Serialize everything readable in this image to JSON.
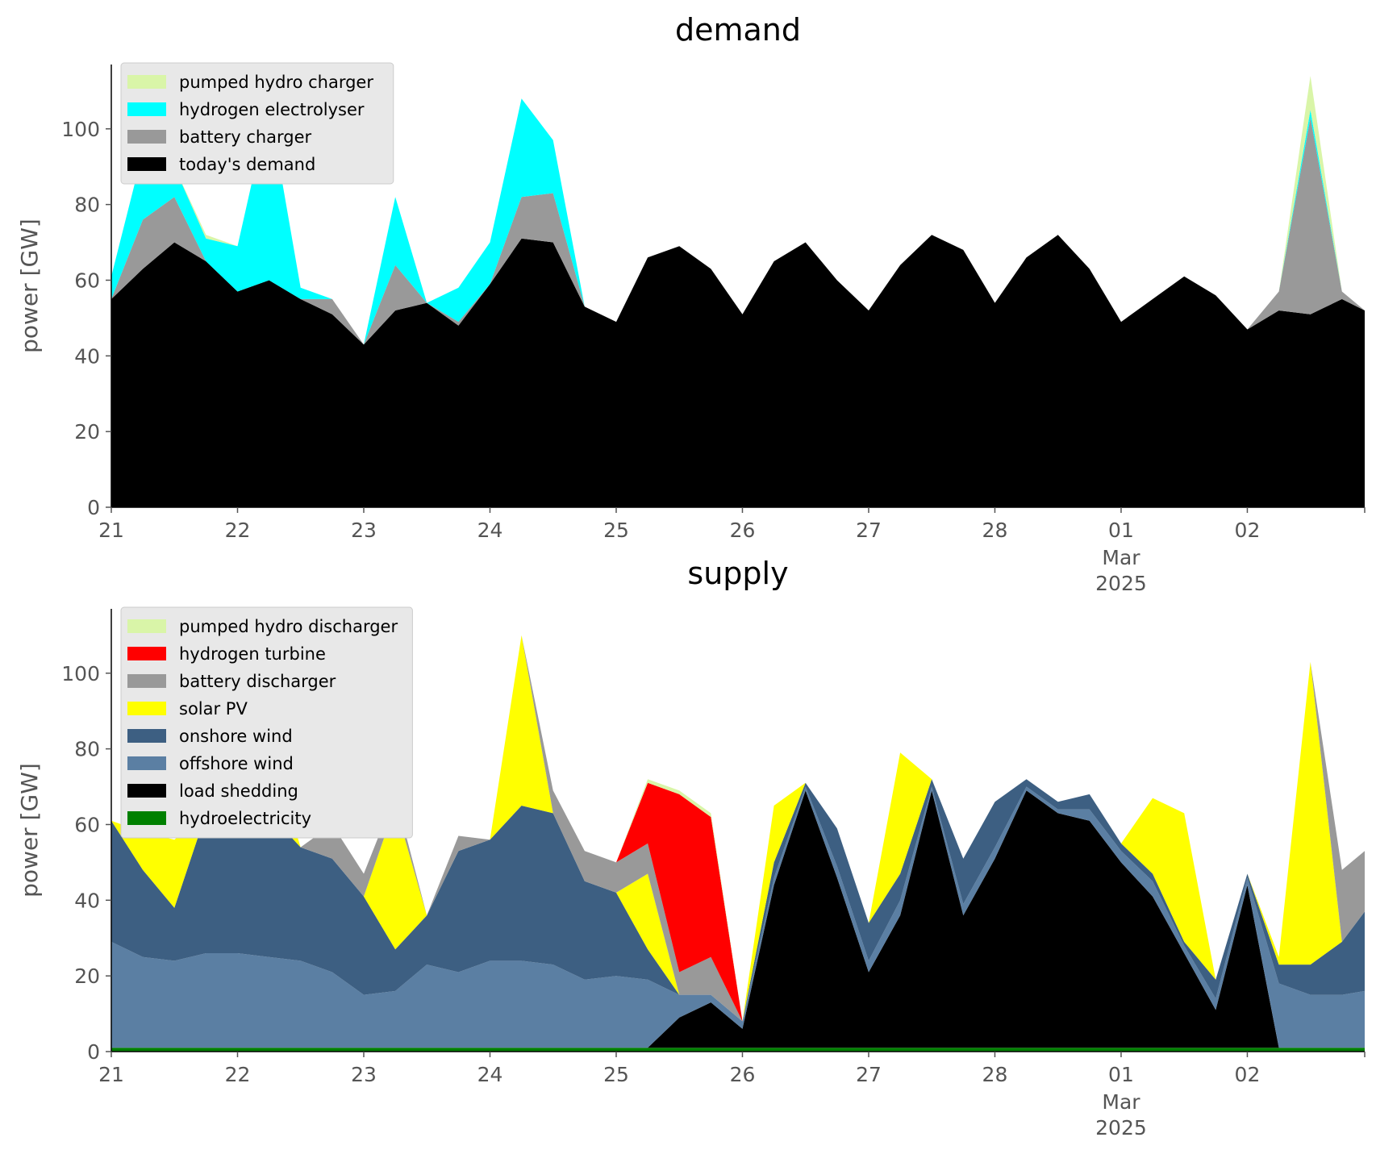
{
  "chart_data": [
    {
      "type": "area",
      "stacked": true,
      "title": "demand",
      "ylabel": "power [GW]",
      "xlabel": "",
      "ylim": [
        0,
        117
      ],
      "yticks": [
        0,
        20,
        40,
        60,
        80,
        100
      ],
      "x_range": [
        0,
        9.93
      ],
      "x_ticks": [
        {
          "x": 0,
          "label": "21"
        },
        {
          "x": 1,
          "label": "22"
        },
        {
          "x": 2,
          "label": "23"
        },
        {
          "x": 3,
          "label": "24"
        },
        {
          "x": 4,
          "label": "25"
        },
        {
          "x": 5,
          "label": "26"
        },
        {
          "x": 6,
          "label": "27"
        },
        {
          "x": 7,
          "label": "28"
        },
        {
          "x": 8,
          "label": "01",
          "sub": [
            "Mar",
            "2025"
          ]
        },
        {
          "x": 9,
          "label": "02"
        }
      ],
      "x": [
        0.0,
        0.25,
        0.5,
        0.75,
        1.0,
        1.25,
        1.5,
        1.75,
        2.0,
        2.25,
        2.5,
        2.75,
        3.0,
        3.25,
        3.5,
        3.75,
        4.0,
        4.25,
        4.5,
        4.75,
        5.0,
        5.25,
        5.5,
        5.75,
        6.0,
        6.25,
        6.5,
        6.75,
        7.0,
        7.25,
        7.5,
        7.75,
        8.0,
        8.25,
        8.5,
        8.75,
        9.0,
        9.25,
        9.5,
        9.75,
        9.93
      ],
      "legend_position": "top-left",
      "grid": false,
      "series": [
        {
          "name": "today's demand",
          "color": "#000000",
          "values": [
            55,
            63,
            70,
            65,
            57,
            60,
            55,
            51,
            43,
            52,
            54,
            48,
            59,
            71,
            70,
            53,
            49,
            66,
            69,
            63,
            51,
            65,
            70,
            60,
            52,
            64,
            72,
            68,
            54,
            66,
            72,
            63,
            49,
            55,
            61,
            56,
            47,
            52,
            51,
            55,
            52
          ]
        },
        {
          "name": "battery charger",
          "color": "#999999",
          "values": [
            0,
            13,
            12,
            0,
            0,
            0,
            0,
            4,
            0,
            12,
            0,
            1,
            0,
            11,
            13,
            0,
            0,
            0,
            0,
            0,
            0,
            0,
            0,
            0,
            0,
            0,
            0,
            0,
            0,
            0,
            0,
            0,
            0,
            0,
            0,
            0,
            0,
            5,
            52,
            2,
            0
          ]
        },
        {
          "name": "hydrogen electrolyser",
          "color": "#00ffff",
          "values": [
            6,
            18,
            8,
            6,
            12,
            46,
            3,
            0,
            0,
            18,
            0,
            9,
            11,
            26,
            14,
            0,
            0,
            0,
            0,
            0,
            0,
            0,
            0,
            0,
            0,
            0,
            0,
            0,
            0,
            0,
            0,
            0,
            0,
            0,
            0,
            0,
            0,
            0,
            2,
            0,
            0
          ]
        },
        {
          "name": "pumped hydro charger",
          "color": "#d9f5a8",
          "values": [
            0,
            0,
            0,
            1,
            0,
            0,
            0,
            0,
            0,
            0,
            0,
            0,
            0,
            0,
            0,
            0,
            0,
            0,
            0,
            0,
            0,
            0,
            0,
            0,
            0,
            0,
            0,
            0,
            0,
            0,
            0,
            0,
            0,
            0,
            0,
            0,
            0,
            0,
            9,
            0,
            0
          ]
        }
      ],
      "legend_order": [
        "pumped hydro charger",
        "hydrogen electrolyser",
        "battery charger",
        "today's demand"
      ]
    },
    {
      "type": "area",
      "stacked": true,
      "title": "supply",
      "ylabel": "power [GW]",
      "xlabel": "",
      "ylim": [
        0,
        117
      ],
      "yticks": [
        0,
        20,
        40,
        60,
        80,
        100
      ],
      "x_range": [
        0,
        9.93
      ],
      "x_ticks": [
        {
          "x": 0,
          "label": "21"
        },
        {
          "x": 1,
          "label": "22"
        },
        {
          "x": 2,
          "label": "23"
        },
        {
          "x": 3,
          "label": "24"
        },
        {
          "x": 4,
          "label": "25"
        },
        {
          "x": 5,
          "label": "26"
        },
        {
          "x": 6,
          "label": "27"
        },
        {
          "x": 7,
          "label": "28"
        },
        {
          "x": 8,
          "label": "01",
          "sub": [
            "Mar",
            "2025"
          ]
        },
        {
          "x": 9,
          "label": "02"
        }
      ],
      "x": [
        0.0,
        0.25,
        0.5,
        0.75,
        1.0,
        1.25,
        1.5,
        1.75,
        2.0,
        2.25,
        2.5,
        2.75,
        3.0,
        3.25,
        3.5,
        3.75,
        4.0,
        4.25,
        4.5,
        4.75,
        5.0,
        5.25,
        5.5,
        5.75,
        6.0,
        6.25,
        6.5,
        6.75,
        7.0,
        7.25,
        7.5,
        7.75,
        8.0,
        8.25,
        8.5,
        8.75,
        9.0,
        9.25,
        9.5,
        9.75,
        9.93
      ],
      "legend_position": "top-left",
      "grid": false,
      "series": [
        {
          "name": "hydroelectricity",
          "color": "#008000",
          "values": [
            1,
            1,
            1,
            1,
            1,
            1,
            1,
            1,
            1,
            1,
            1,
            1,
            1,
            1,
            1,
            1,
            1,
            1,
            1,
            1,
            1,
            1,
            1,
            1,
            1,
            1,
            1,
            1,
            1,
            1,
            1,
            1,
            1,
            1,
            1,
            1,
            1,
            1,
            1,
            1,
            1
          ]
        },
        {
          "name": "load shedding",
          "color": "#000000",
          "values": [
            0,
            0,
            0,
            0,
            0,
            0,
            0,
            0,
            0,
            0,
            0,
            0,
            0,
            0,
            0,
            0,
            0,
            0,
            8,
            12,
            5,
            43,
            68,
            45,
            20,
            35,
            68,
            35,
            50,
            68,
            62,
            60,
            49,
            40,
            25,
            10,
            43,
            0,
            0,
            0,
            0
          ]
        },
        {
          "name": "offshore wind",
          "color": "#5b7fa3",
          "values": [
            28,
            24,
            23,
            25,
            25,
            24,
            23,
            20,
            14,
            15,
            22,
            20,
            23,
            23,
            22,
            18,
            19,
            18,
            6,
            2,
            2,
            2,
            1,
            3,
            3,
            4,
            1,
            3,
            3,
            1,
            1,
            3,
            3,
            4,
            2,
            3,
            2,
            17,
            14,
            14,
            15
          ]
        },
        {
          "name": "onshore wind",
          "color": "#3d5f82",
          "values": [
            32,
            23,
            14,
            37,
            45,
            38,
            30,
            30,
            26,
            11,
            13,
            32,
            32,
            41,
            40,
            26,
            22,
            8,
            0,
            0,
            0,
            4,
            1,
            10,
            10,
            7,
            2,
            12,
            12,
            2,
            2,
            4,
            2,
            2,
            1,
            5,
            1,
            5,
            8,
            14,
            21
          ]
        },
        {
          "name": "solar PV",
          "color": "#ffff00",
          "values": [
            0,
            10,
            18,
            0,
            0,
            18,
            0,
            0,
            0,
            38,
            0,
            0,
            0,
            45,
            0,
            0,
            0,
            20,
            0,
            0,
            0,
            15,
            0,
            0,
            0,
            32,
            0,
            0,
            0,
            0,
            0,
            0,
            0,
            20,
            34,
            0,
            0,
            2,
            80,
            0,
            0
          ]
        },
        {
          "name": "battery discharger",
          "color": "#999999",
          "values": [
            0,
            0,
            0,
            0,
            0,
            0,
            0,
            9,
            6,
            3,
            0,
            4,
            0,
            0,
            6,
            8,
            8,
            8,
            6,
            10,
            0,
            0,
            0,
            0,
            0,
            0,
            0,
            0,
            0,
            0,
            0,
            0,
            0,
            0,
            0,
            0,
            0,
            0,
            0,
            19,
            16
          ]
        },
        {
          "name": "hydrogen turbine",
          "color": "#ff0000",
          "values": [
            0,
            0,
            0,
            0,
            0,
            0,
            0,
            0,
            0,
            0,
            0,
            0,
            0,
            0,
            0,
            0,
            0,
            16,
            47,
            37,
            0,
            0,
            0,
            0,
            0,
            0,
            0,
            0,
            0,
            0,
            0,
            0,
            0,
            0,
            0,
            0,
            0,
            0,
            0,
            0,
            0
          ]
        },
        {
          "name": "pumped hydro discharger",
          "color": "#d9f5a8",
          "values": [
            0,
            0,
            0,
            0,
            0,
            0,
            0,
            0,
            0,
            0,
            0,
            0,
            0,
            0,
            0,
            0,
            0,
            1,
            1,
            1,
            0,
            0,
            0,
            0,
            0,
            0,
            0,
            0,
            0,
            0,
            0,
            0,
            0,
            0,
            0,
            0,
            0,
            0,
            0,
            0,
            0
          ]
        }
      ],
      "legend_order": [
        "pumped hydro discharger",
        "hydrogen turbine",
        "battery discharger",
        "solar PV",
        "onshore wind",
        "offshore wind",
        "load shedding",
        "hydroelectricity"
      ]
    }
  ]
}
